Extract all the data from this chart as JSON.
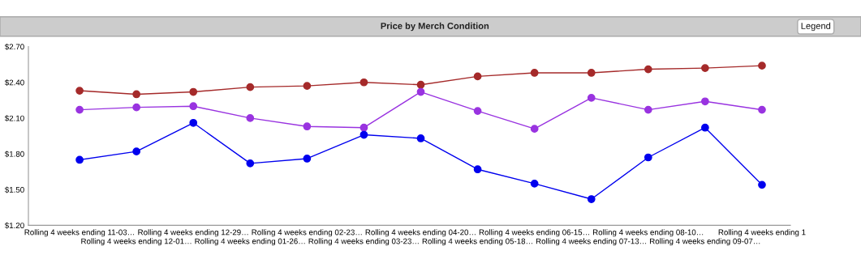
{
  "chart_data": {
    "type": "line",
    "title": "Price by Merch Condition",
    "categories": [
      "Rolling 4 weeks ending 11-03…",
      "Rolling 4 weeks ending 12-01…",
      "Rolling 4 weeks ending 12-29…",
      "Rolling 4 weeks ending 01-26…",
      "Rolling 4 weeks ending 02-23…",
      "Rolling 4 weeks ending 03-23…",
      "Rolling 4 weeks ending 04-20…",
      "Rolling 4 weeks ending 05-18…",
      "Rolling 4 weeks ending 06-15…",
      "Rolling 4 weeks ending 07-13…",
      "Rolling 4 weeks ending 08-10…",
      "Rolling 4 weeks ending 09-07…",
      "Rolling 4 weeks ending 1"
    ],
    "series": [
      {
        "color": "#a52a2a",
        "values": [
          2.33,
          2.3,
          2.32,
          2.36,
          2.37,
          2.4,
          2.38,
          2.45,
          2.48,
          2.48,
          2.51,
          2.52,
          2.54
        ]
      },
      {
        "color": "#9933e0",
        "values": [
          2.17,
          2.19,
          2.2,
          2.1,
          2.03,
          2.02,
          2.32,
          2.16,
          2.01,
          2.27,
          2.17,
          2.24,
          2.17
        ]
      },
      {
        "color": "#0000ee",
        "values": [
          1.75,
          1.82,
          2.06,
          1.72,
          1.76,
          1.96,
          1.93,
          1.67,
          1.55,
          1.42,
          1.77,
          2.02,
          1.54
        ]
      }
    ],
    "ylim": [
      1.2,
      2.7
    ],
    "yticks": [
      {
        "value": 1.2,
        "label": "$1.20"
      },
      {
        "value": 1.5,
        "label": "$1.50"
      },
      {
        "value": 1.8,
        "label": "$1.80"
      },
      {
        "value": 2.1,
        "label": "$2.10"
      },
      {
        "value": 2.4,
        "label": "$2.40"
      },
      {
        "value": 2.7,
        "label": "$2.70"
      }
    ],
    "marker": "circle",
    "line_style": "solid",
    "grid": false,
    "annotations": [
      "Legend"
    ]
  }
}
